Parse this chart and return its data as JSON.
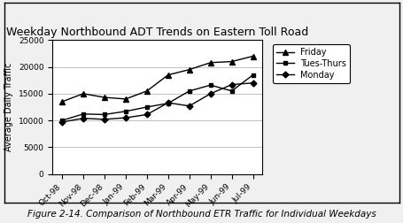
{
  "title": "Weekday Northbound ADT Trends on Eastern Toll Road",
  "ylabel": "Average Daily Traffic",
  "caption": "Figure 2-14. Comparison of Northbound ETR Traffic for Individual Weekdays",
  "x_labels": [
    "Oct-98",
    "Nov-98",
    "Dec-98",
    "Jan-99",
    "Feb-99",
    "Mar-99",
    "Apr-99",
    "May-99",
    "Jun-99",
    "Jul-99"
  ],
  "friday": [
    13500,
    15000,
    14300,
    14000,
    15500,
    18500,
    19500,
    20800,
    21000,
    22000
  ],
  "tues_thurs": [
    10000,
    11200,
    11100,
    11700,
    12500,
    13200,
    15500,
    16600,
    15500,
    18500
  ],
  "monday": [
    9700,
    10400,
    10200,
    10500,
    11100,
    13300,
    12700,
    15000,
    16700,
    17000
  ],
  "line_color": "#000000",
  "bg_color": "#f0f0f0",
  "plot_bg": "#ffffff",
  "ylim": [
    0,
    25000
  ],
  "yticks": [
    0,
    5000,
    10000,
    15000,
    20000,
    25000
  ],
  "legend_labels": [
    "Friday",
    "Tues-Thurs",
    "Monday"
  ],
  "title_fontsize": 9,
  "label_fontsize": 7,
  "tick_fontsize": 6.5,
  "caption_fontsize": 7.5
}
